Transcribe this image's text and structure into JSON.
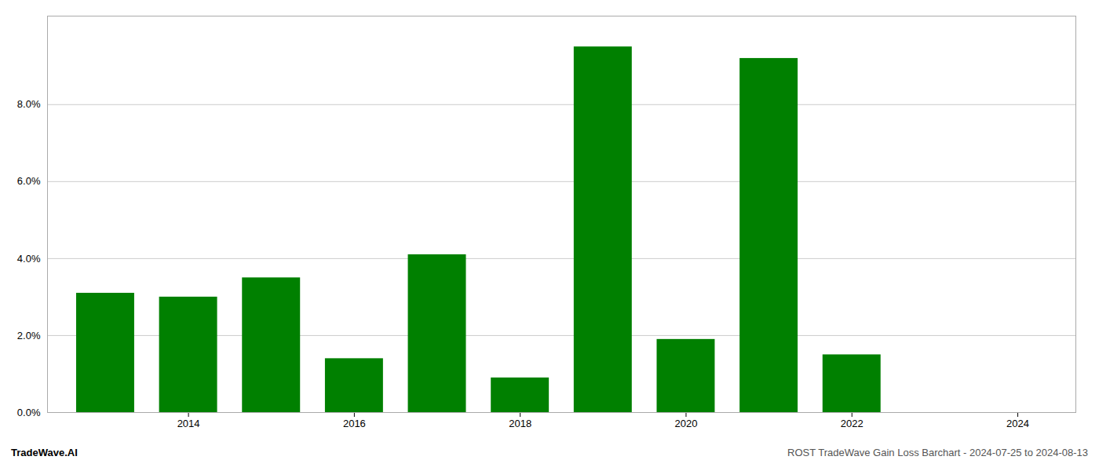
{
  "chart_data": {
    "type": "bar",
    "x": [
      2013,
      2014,
      2015,
      2016,
      2017,
      2018,
      2019,
      2020,
      2021,
      2022,
      2023
    ],
    "values": [
      0.031,
      0.03,
      0.035,
      0.014,
      0.041,
      0.009,
      0.095,
      0.019,
      0.092,
      0.015,
      0.0
    ],
    "color": "#008000",
    "xlim": [
      2012.3,
      2024.7
    ],
    "xticks": [
      2014,
      2016,
      2018,
      2020,
      2022,
      2024
    ],
    "ylim": [
      0.0,
      0.103
    ],
    "yticks": [
      {
        "value": 0.0,
        "label": "0.0%"
      },
      {
        "value": 0.02,
        "label": "2.0%"
      },
      {
        "value": 0.04,
        "label": "4.0%"
      },
      {
        "value": 0.06,
        "label": "6.0%"
      },
      {
        "value": 0.08,
        "label": "8.0%"
      }
    ],
    "grid": true,
    "annotations": [
      {
        "text": "TradeWave.AI",
        "color": "#000000"
      },
      {
        "text": "ROST TradeWave Gain Loss Barchart - 2024-07-25 to 2024-08-13",
        "color": "#555555"
      }
    ]
  }
}
